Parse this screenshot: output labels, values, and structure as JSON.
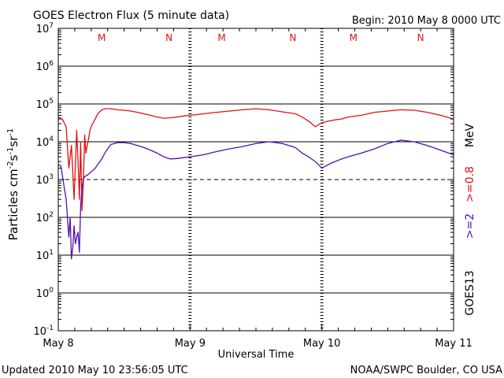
{
  "header": {
    "title": "GOES Electron Flux (5 minute data)",
    "begin": "Begin: 2010 May 8 0000 UTC"
  },
  "footer": {
    "updated": "Updated 2010 May 10 23:56:05 UTC",
    "credit": "NOAA/SWPC Boulder, CO USA"
  },
  "colors": {
    "high_energy": "#e01010",
    "low_energy": "#5010b0",
    "axis": "#000000",
    "markers": "#e01010"
  },
  "chart_data": {
    "type": "line",
    "title": "GOES Electron Flux (5 minute data)",
    "xlabel": "Universal Time",
    "ylabel_parts": [
      "Particles cm",
      "-2",
      "s",
      "-1",
      "sr",
      "-1"
    ],
    "y_scale": "log",
    "ylim": [
      0.1,
      10000000
    ],
    "y_ticks": [
      {
        "base": "10",
        "exp": "7"
      },
      {
        "base": "10",
        "exp": "6"
      },
      {
        "base": "10",
        "exp": "5"
      },
      {
        "base": "10",
        "exp": "4"
      },
      {
        "base": "10",
        "exp": "3"
      },
      {
        "base": "10",
        "exp": "2"
      },
      {
        "base": "10",
        "exp": "1"
      },
      {
        "base": "10",
        "exp": "0"
      },
      {
        "base": "10",
        "exp": "-1"
      }
    ],
    "xlim_days": [
      0,
      3
    ],
    "x_ticks": [
      "May 8",
      "May 9",
      "May 10",
      "May 11"
    ],
    "day_markers": [
      {
        "day": 0.33,
        "label": "M"
      },
      {
        "day": 0.84,
        "label": "N"
      },
      {
        "day": 1.24,
        "label": "M"
      },
      {
        "day": 1.78,
        "label": "N"
      },
      {
        "day": 2.24,
        "label": "M"
      },
      {
        "day": 2.75,
        "label": "N"
      }
    ],
    "gridlines": [
      1,
      10,
      100,
      1000,
      10000,
      100000,
      1000000
    ],
    "threshold_line": 1000,
    "right_labels": {
      "high": ">=0.8",
      "low": ">=2",
      "unit": "MeV",
      "satellite": "GOES13"
    },
    "series": [
      {
        "name": ">=0.8",
        "color": "#e01010",
        "x": [
          0,
          0.03,
          0.06,
          0.08,
          0.1,
          0.12,
          0.14,
          0.15,
          0.16,
          0.17,
          0.18,
          0.19,
          0.2,
          0.21,
          0.22,
          0.23,
          0.24,
          0.25,
          0.26,
          0.28,
          0.3,
          0.33,
          0.36,
          0.4,
          0.45,
          0.5,
          0.55,
          0.6,
          0.65,
          0.7,
          0.75,
          0.8,
          0.85,
          0.9,
          0.95,
          1.0,
          1.05,
          1.1,
          1.2,
          1.3,
          1.4,
          1.5,
          1.6,
          1.7,
          1.8,
          1.85,
          1.9,
          1.95,
          2.0,
          2.05,
          2.1,
          2.15,
          2.2,
          2.3,
          2.4,
          2.5,
          2.6,
          2.7,
          2.8,
          2.9,
          3.0
        ],
        "values": [
          45000,
          40000,
          25000,
          2000,
          8000,
          300,
          20000,
          3000,
          300,
          10000,
          150,
          800,
          15000,
          5000,
          8000,
          12000,
          20000,
          25000,
          30000,
          40000,
          55000,
          70000,
          75000,
          75000,
          70000,
          68000,
          65000,
          60000,
          55000,
          50000,
          45000,
          42000,
          43000,
          45000,
          48000,
          50000,
          52000,
          55000,
          60000,
          65000,
          70000,
          75000,
          70000,
          62000,
          55000,
          45000,
          35000,
          25000,
          32000,
          35000,
          38000,
          40000,
          45000,
          50000,
          60000,
          65000,
          70000,
          68000,
          60000,
          50000,
          40000
        ]
      },
      {
        "name": ">=2",
        "color": "#5010b0",
        "x": [
          0,
          0.02,
          0.04,
          0.06,
          0.08,
          0.09,
          0.1,
          0.11,
          0.12,
          0.13,
          0.14,
          0.15,
          0.16,
          0.17,
          0.18,
          0.19,
          0.2,
          0.22,
          0.25,
          0.28,
          0.3,
          0.33,
          0.36,
          0.4,
          0.45,
          0.5,
          0.55,
          0.6,
          0.65,
          0.7,
          0.75,
          0.8,
          0.85,
          0.9,
          0.95,
          1.0,
          1.1,
          1.2,
          1.3,
          1.4,
          1.5,
          1.6,
          1.7,
          1.8,
          1.85,
          1.9,
          1.95,
          2.0,
          2.05,
          2.1,
          2.15,
          2.2,
          2.3,
          2.4,
          2.5,
          2.6,
          2.7,
          2.8,
          2.9,
          3.0
        ],
        "values": [
          2500,
          2300,
          800,
          300,
          30,
          100,
          8,
          15,
          60,
          20,
          30,
          40,
          12,
          200,
          600,
          1000,
          1200,
          1300,
          1600,
          2000,
          2500,
          3500,
          5500,
          8500,
          9500,
          9500,
          9000,
          8000,
          7000,
          6000,
          5000,
          4000,
          3500,
          3600,
          3800,
          4000,
          4500,
          5500,
          6500,
          7500,
          9000,
          10000,
          9000,
          7000,
          5000,
          4000,
          3000,
          2000,
          2500,
          3000,
          3500,
          4000,
          5000,
          6500,
          9000,
          11000,
          10000,
          8000,
          6000,
          4500
        ]
      }
    ]
  }
}
